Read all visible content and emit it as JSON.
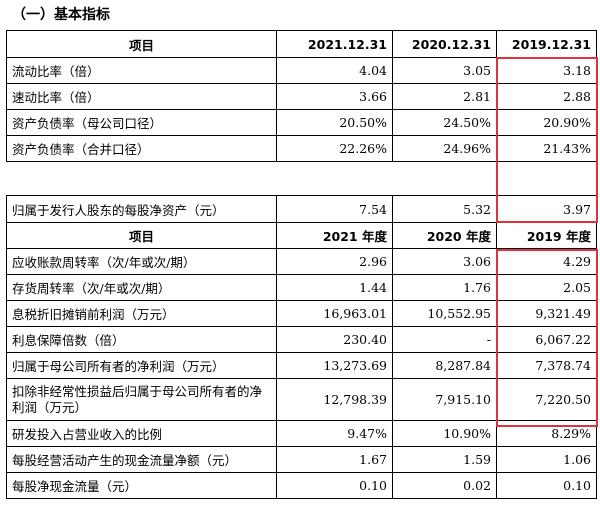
{
  "title": "（一）基本指标",
  "table1": {
    "headers": [
      "项目",
      "2021.12.31",
      "2020.12.31",
      "2019.12.31"
    ],
    "rows": [
      [
        "流动比率（倍）",
        "4.04",
        "3.05",
        "3.18"
      ],
      [
        "速动比率（倍）",
        "3.66",
        "2.81",
        "2.88"
      ],
      [
        "资产负债率（母公司口径）",
        "20.50%",
        "24.50%",
        "20.90%"
      ],
      [
        "资产负债率（合并口径）",
        "22.26%",
        "24.96%",
        "21.43%"
      ]
    ]
  },
  "table2": {
    "row": [
      "归属于发行人股东的每股净资产（元）",
      "7.54",
      "5.32",
      "3.97"
    ],
    "headers": [
      "项目",
      "2021 年度",
      "2020 年度",
      "2019 年度"
    ],
    "rows": [
      [
        "应收账款周转率（次/年或次/期）",
        "2.96",
        "3.06",
        "4.29"
      ],
      [
        "存货周转率（次/年或次/期）",
        "1.44",
        "1.76",
        "2.05"
      ],
      [
        "息税折旧摊销前利润（万元）",
        "16,963.01",
        "10,552.95",
        "9,321.49"
      ],
      [
        "利息保障倍数（倍）",
        "230.40",
        "-",
        "6,067.22"
      ],
      [
        "归属于母公司所有者的净利润（万元）",
        "13,273.69",
        "8,287.84",
        "7,378.74"
      ],
      [
        "扣除非经常性损益后归属于母公司所有者的净利润（万元）",
        "12,798.39",
        "7,915.10",
        "7,220.50"
      ],
      [
        "研发投入占营业收入的比例",
        "9.47%",
        "10.90%",
        "8.29%"
      ],
      [
        "每股经营活动产生的现金流量净额（元）",
        "1.67",
        "1.59",
        "1.06"
      ],
      [
        "每股净现金流量（元）",
        "0.10",
        "0.02",
        "0.10"
      ]
    ]
  },
  "highlight_color": "#e0323a"
}
